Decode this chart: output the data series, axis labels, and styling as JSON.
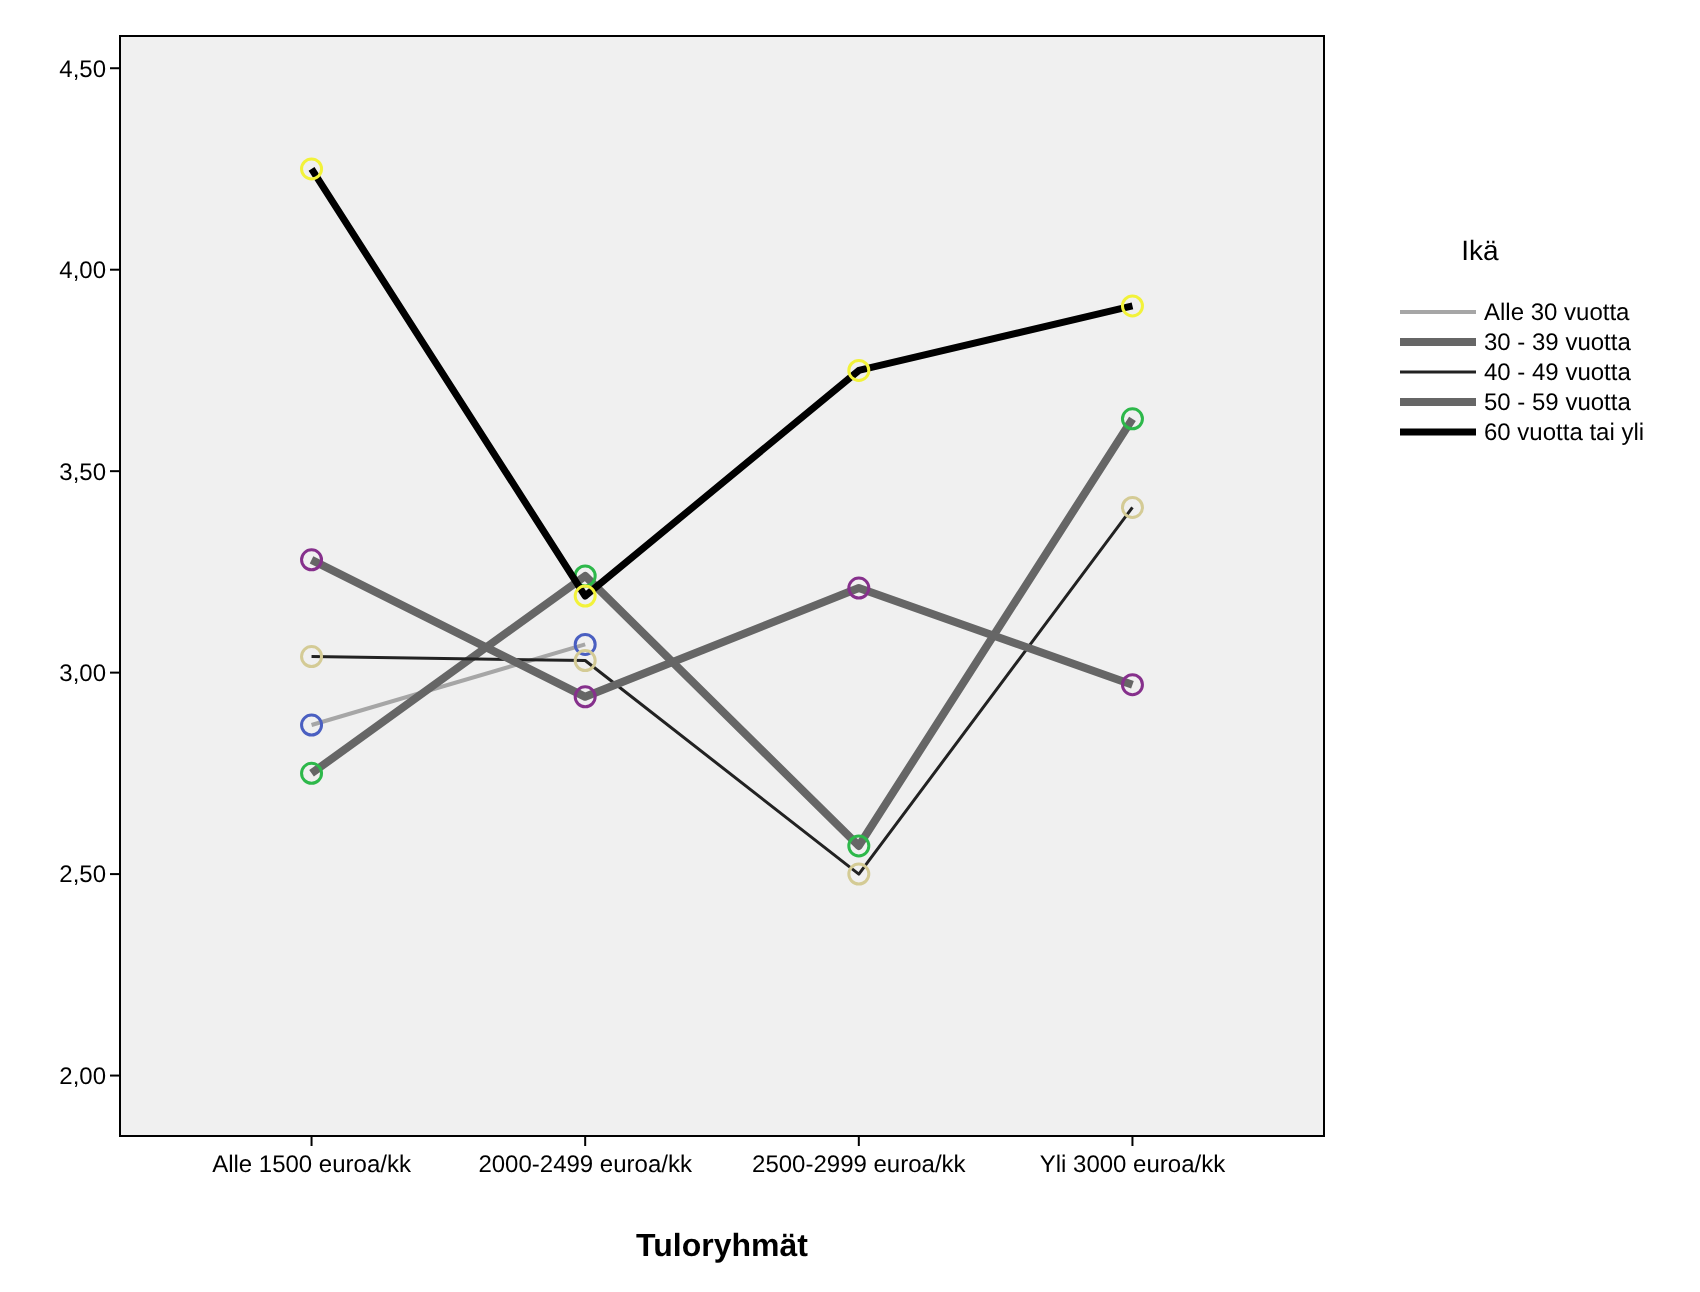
{
  "chart_data": {
    "type": "line",
    "xlabel": "Tuloryhmät",
    "legend_title": "Ikä",
    "legend": "right",
    "marker": "circle",
    "line_style": "solid",
    "categories": [
      "Alle 1500 euroa/kk",
      "2000-2499 euroa/kk",
      "2500-2999 euroa/kk",
      "Yli 3000 euroa/kk"
    ],
    "ylim": [
      1.85,
      4.58
    ],
    "yticks": [
      {
        "value": 2,
        "label": "2,00"
      },
      {
        "value": 2.5,
        "label": "2,50"
      },
      {
        "value": 3,
        "label": "3,00"
      },
      {
        "value": 3.5,
        "label": "3,50"
      },
      {
        "value": 4,
        "label": "4,00"
      },
      {
        "value": 4.5,
        "label": "4,50"
      }
    ],
    "series": [
      {
        "name": "Alle 30 vuotta",
        "color": "#a6a6a6",
        "colors": [
          "#4a5fc1",
          "#4a5fc1",
          "#4a5fc1",
          "#4a5fc1"
        ],
        "values": [
          2.87,
          3.07,
          null,
          null
        ]
      },
      {
        "name": "30 - 39 vuotta",
        "color": "#666666",
        "colors": [
          "#2db84a",
          "#2db84a",
          "#2db84a",
          "#2db84a"
        ],
        "values": [
          2.75,
          3.24,
          2.57,
          3.63
        ]
      },
      {
        "name": "40 - 49 vuotta",
        "color": "#222222",
        "colors": [
          "#d4cb95",
          "#d4cb95",
          "#d4cb95",
          "#d4cb95"
        ],
        "values": [
          3.04,
          3.03,
          2.5,
          3.41
        ]
      },
      {
        "name": "50 - 59 vuotta",
        "color": "#666666",
        "colors": [
          "#86308c",
          "#86308c",
          "#86308c",
          "#86308c"
        ],
        "values": [
          3.28,
          2.94,
          3.21,
          2.97
        ]
      },
      {
        "name": "60 vuotta tai yli",
        "color": "#000000",
        "colors": [
          "#f2f23a",
          "#f2f23a",
          "#f2f23a",
          "#f2f23a"
        ],
        "values": [
          4.25,
          3.19,
          3.75,
          3.91
        ]
      }
    ]
  }
}
